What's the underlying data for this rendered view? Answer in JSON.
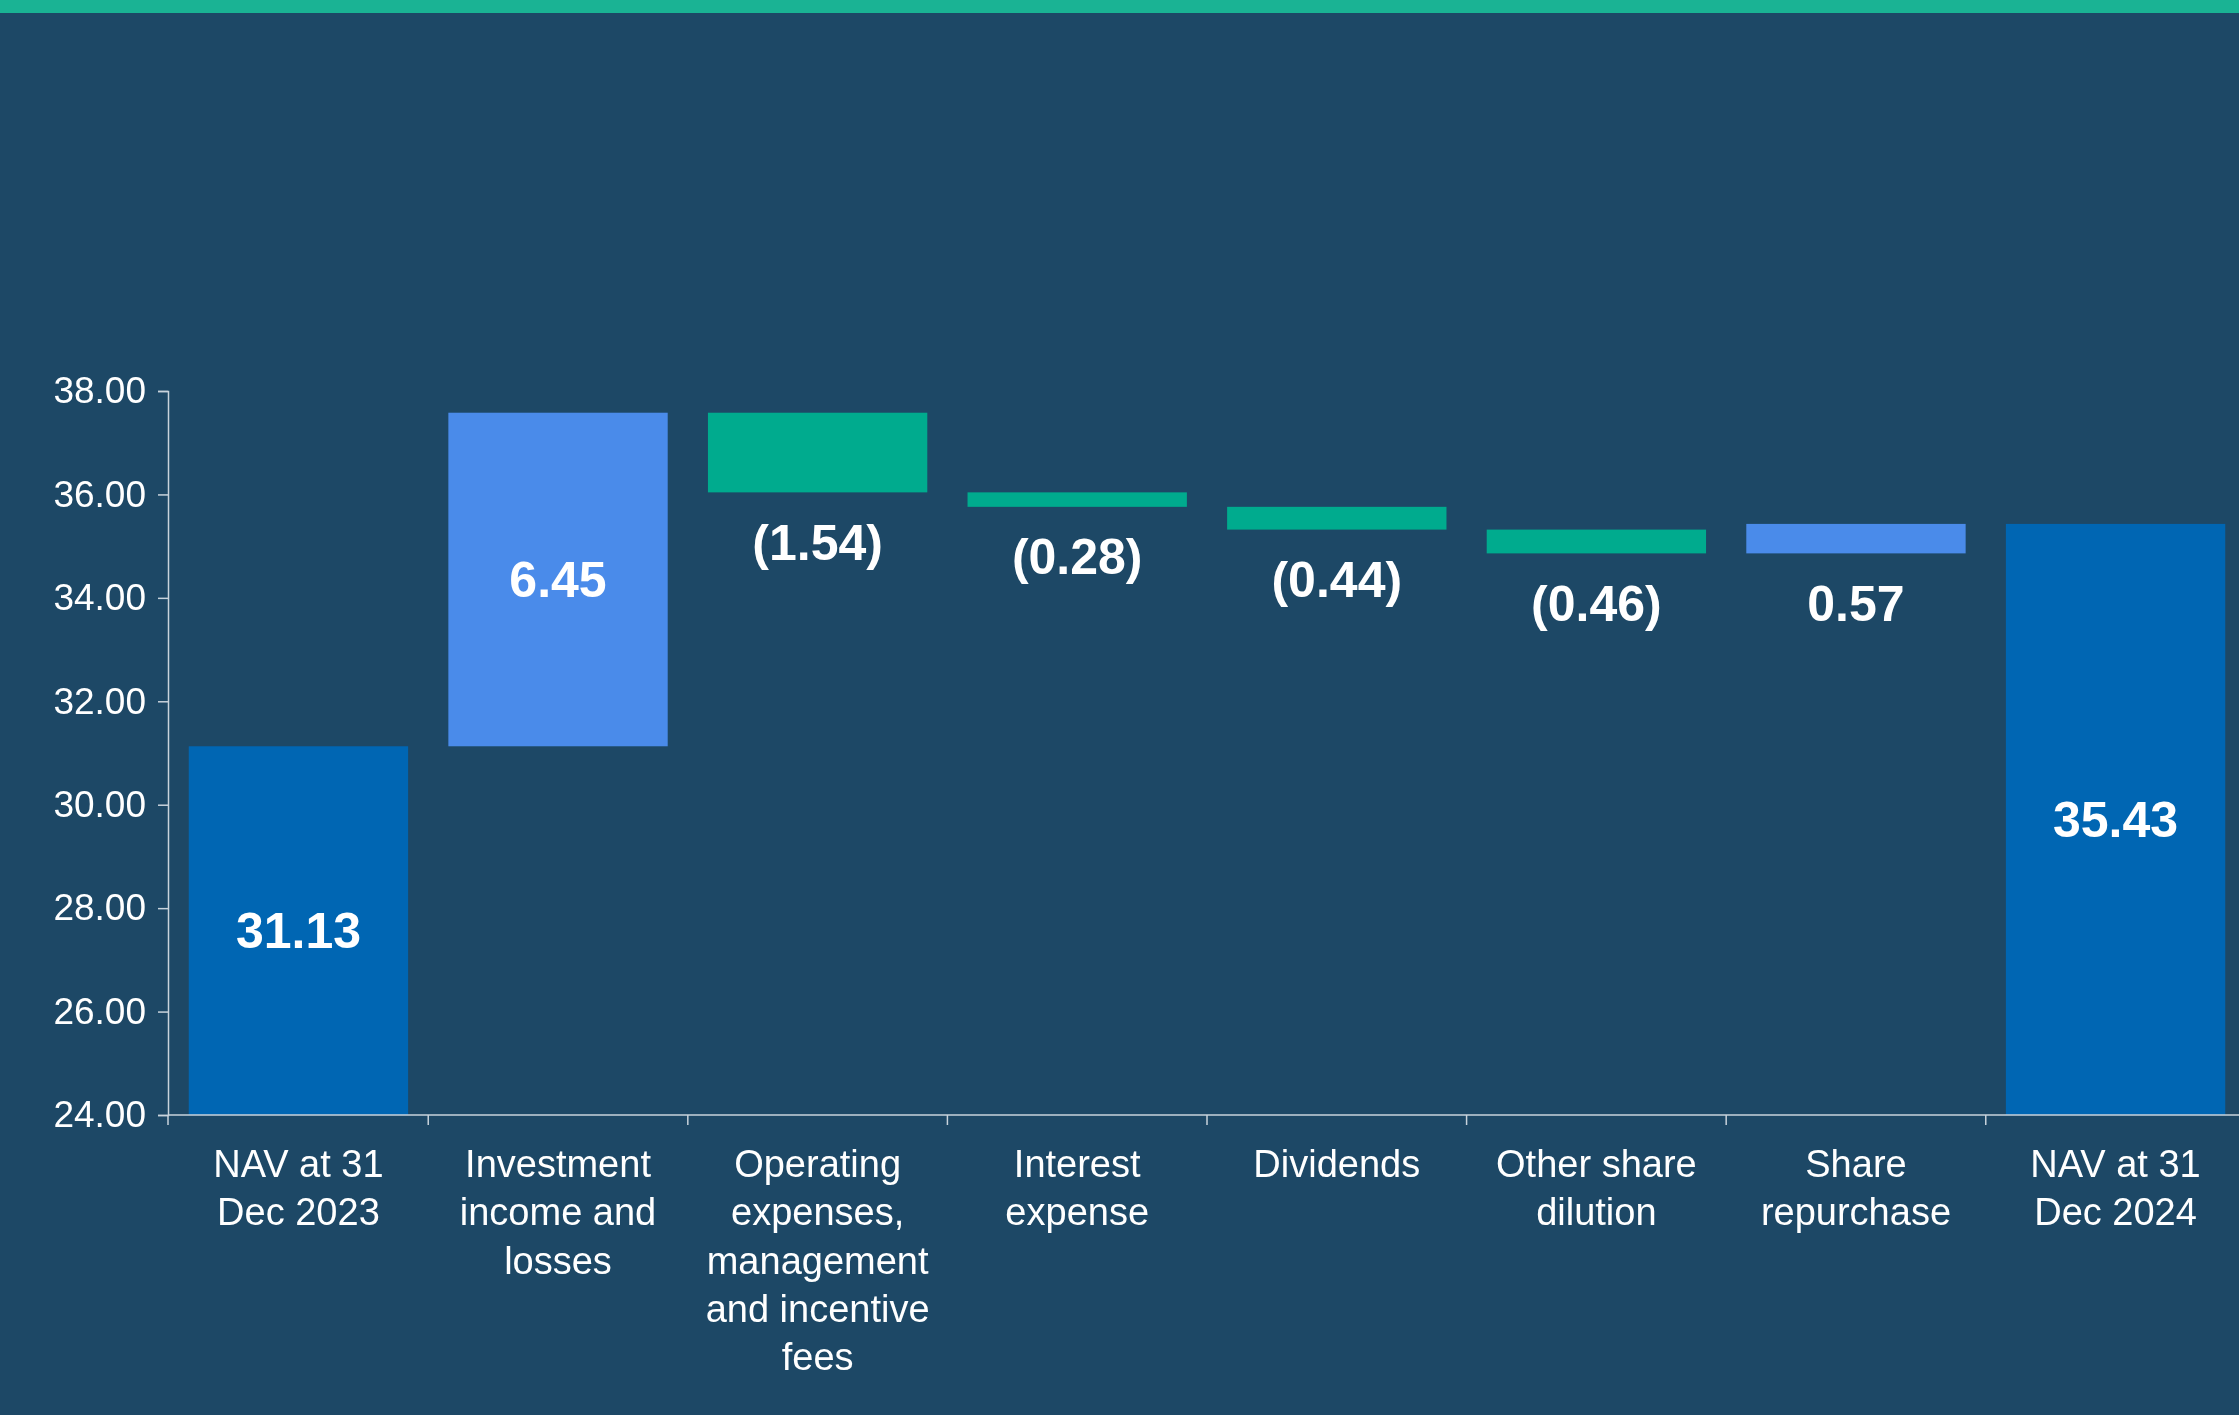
{
  "chart_data": {
    "type": "bar",
    "categories": [
      "NAV at 31 Dec 2023",
      "Investment income and losses",
      "Operating expenses, management and incentive fees",
      "Interest expense",
      "Dividends",
      "Other share dilution",
      "Share repurchase",
      "NAV at 31 Dec 2024"
    ],
    "values": [
      31.13,
      6.45,
      -1.54,
      -0.28,
      -0.44,
      -0.46,
      0.57,
      35.43
    ],
    "base": [
      null,
      31.13,
      37.58,
      36.04,
      35.76,
      35.32,
      34.86,
      null
    ],
    "colors": [
      "#0066b3",
      "#4a8bea",
      "#00ab8e",
      "#00ab8e",
      "#00ab8e",
      "#00ab8e",
      "#4a8bea",
      "#0066b3"
    ],
    "value_labels": [
      "31.13",
      "6.45",
      "(1.54)",
      "(0.28)",
      "(0.44)",
      "(0.46)",
      "0.57",
      "35.43"
    ],
    "ylim": [
      24,
      38
    ],
    "yticks": [
      {
        "value": 24,
        "label": "24.00"
      },
      {
        "value": 26,
        "label": "26.00"
      },
      {
        "value": 28,
        "label": "28.00"
      },
      {
        "value": 30,
        "label": "30.00"
      },
      {
        "value": 32,
        "label": "32.00"
      },
      {
        "value": 34,
        "label": "34.00"
      },
      {
        "value": 36,
        "label": "36.00"
      },
      {
        "value": 38,
        "label": "38.00"
      }
    ],
    "grid": false
  }
}
